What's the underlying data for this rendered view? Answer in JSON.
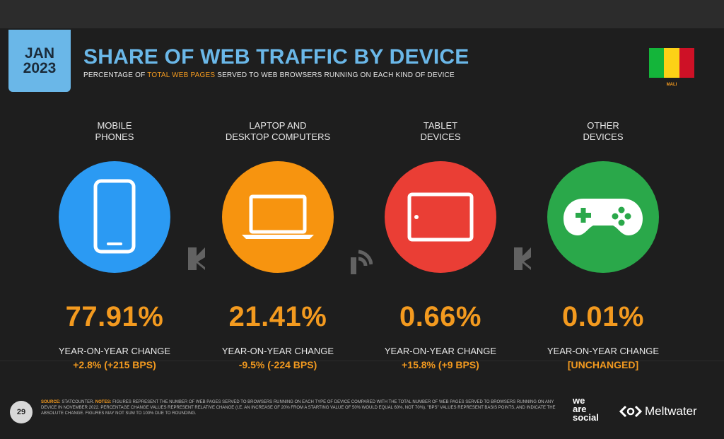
{
  "header": {
    "month": "JAN",
    "year": "2023",
    "title": "SHARE OF WEB TRAFFIC BY DEVICE",
    "subtitle_pre": "PERCENTAGE OF ",
    "subtitle_highlight": "TOTAL WEB PAGES",
    "subtitle_post": " SERVED TO WEB BROWSERS RUNNING ON EACH KIND OF DEVICE",
    "country": "MALI",
    "flag_colors": [
      "#14b53a",
      "#fcd116",
      "#ce1126"
    ]
  },
  "devices": [
    {
      "label_line1": "MOBILE",
      "label_line2": "PHONES",
      "value": "77.91%",
      "yoy_label": "YEAR-ON-YEAR CHANGE",
      "change": "+2.8% (+215 BPS)",
      "color": "#2b9af3",
      "icon": "mobile-phone-icon"
    },
    {
      "label_line1": "LAPTOP AND",
      "label_line2": "DESKTOP COMPUTERS",
      "value": "21.41%",
      "yoy_label": "YEAR-ON-YEAR CHANGE",
      "change": "-9.5% (-224 BPS)",
      "color": "#f7940f",
      "icon": "laptop-icon"
    },
    {
      "label_line1": "TABLET",
      "label_line2": "DEVICES",
      "value": "0.66%",
      "yoy_label": "YEAR-ON-YEAR CHANGE",
      "change": "+15.8% (+9 BPS)",
      "color": "#ea3e35",
      "icon": "tablet-icon"
    },
    {
      "label_line1": "OTHER",
      "label_line2": "DEVICES",
      "value": "0.01%",
      "yoy_label": "YEAR-ON-YEAR CHANGE",
      "change": "[UNCHANGED]",
      "color": "#2aa84a",
      "icon": "gamepad-icon"
    }
  ],
  "footer": {
    "page_number": "29",
    "source_label": "SOURCE:",
    "source_text": " STATCOUNTER. ",
    "notes_label": "NOTES:",
    "notes_text": " FIGURES REPRESENT THE NUMBER OF WEB PAGES SERVED TO BROWSERS RUNNING ON EACH TYPE OF DEVICE COMPARED WITH THE TOTAL NUMBER OF WEB PAGES SERVED TO BROWSERS RUNNING ON ANY DEVICE IN NOVEMBER 2022. PERCENTAGE CHANGE VALUES REPRESENT RELATIVE CHANGE (I.E. AN INCREASE OF 20% FROM A STARTING VALUE OF 50% WOULD EQUAL 60%, NOT 70%). \"BPS\" VALUES REPRESENT BASIS POINTS, AND INDICATE THE ABSOLUTE CHANGE. FIGURES MAY NOT SUM TO 100% DUE TO ROUNDING.",
    "brand1_line1": "we",
    "brand1_line2": "are",
    "brand1_line3": "social",
    "brand2": "Meltwater"
  },
  "watermark_icons": [
    "kepios-logo-icon",
    "datareportal-logo-icon",
    "kepios-logo-icon"
  ]
}
